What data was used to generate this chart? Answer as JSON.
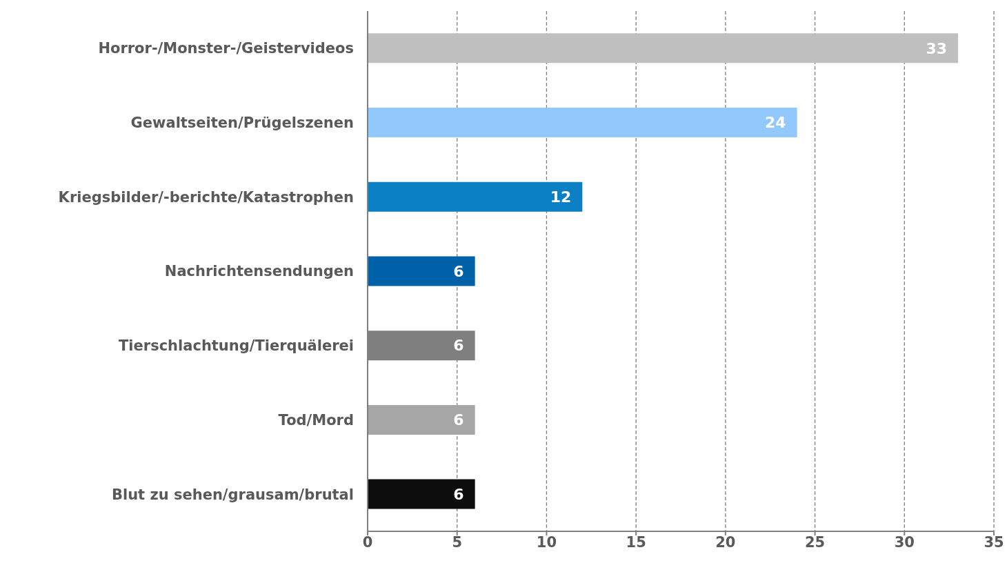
{
  "chart_data": {
    "type": "bar",
    "orientation": "horizontal",
    "categories": [
      "Horror-/Monster-/Geistervideos",
      "Gewaltseiten/Prügelszenen",
      "Kriegsbilder/-berichte/Katastrophen",
      "Nachrichtensendungen",
      "Tierschlachtung/Tierquälerei",
      "Tod/Mord",
      "Blut zu sehen/grausam/brutal"
    ],
    "values": [
      33,
      24,
      12,
      6,
      6,
      6,
      6
    ],
    "colors": [
      "#bfbfbf",
      "#92c8fb",
      "#0a7fc4",
      "#0061a8",
      "#7f7f7f",
      "#a6a6a6",
      "#0d0d0d"
    ],
    "xlim": [
      0,
      35
    ],
    "xticks": [
      0,
      5,
      10,
      15,
      20,
      25,
      30,
      35
    ],
    "grid": "x",
    "data_labels": true
  }
}
